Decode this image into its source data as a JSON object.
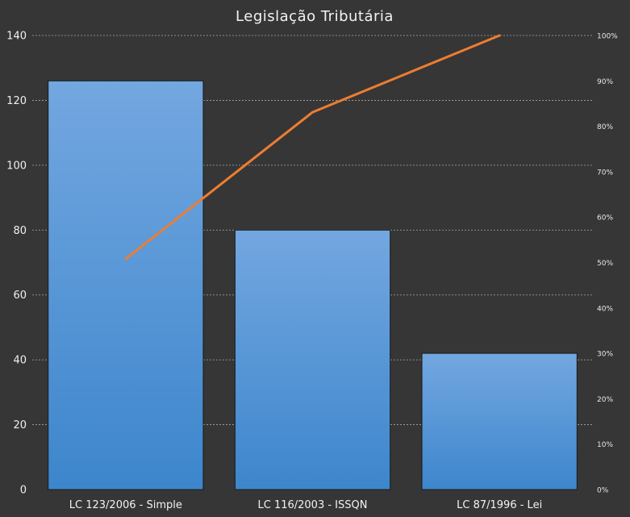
{
  "chart_data": {
    "type": "bar",
    "title": "Legislação Tributária",
    "categories": [
      "LC 123/2006 - Simple",
      "LC 116/2003 - ISSQN",
      "LC 87/1996 - Lei"
    ],
    "series": [
      {
        "values": [
          126,
          80,
          42
        ],
        "color": "#5b9bd5",
        "axis": "left"
      },
      {
        "type": "line",
        "values": [
          0.508,
          0.831,
          1.0
        ],
        "color": "#ed7d31",
        "axis": "right"
      }
    ],
    "y_left": {
      "min": 0,
      "max": 140,
      "step": 20,
      "ticks": [
        "0",
        "20",
        "40",
        "60",
        "80",
        "100",
        "120",
        "140"
      ]
    },
    "y_right": {
      "min": 0,
      "max": 1,
      "step": 0.1,
      "ticks": [
        "0%",
        "10%",
        "20%",
        "30%",
        "40%",
        "50%",
        "60%",
        "70%",
        "80%",
        "90%",
        "100%"
      ]
    },
    "grid": true,
    "legend": "none"
  }
}
